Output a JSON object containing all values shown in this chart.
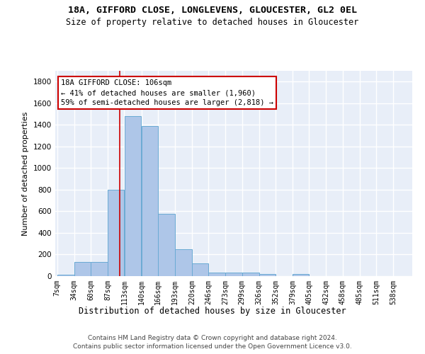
{
  "title1": "18A, GIFFORD CLOSE, LONGLEVENS, GLOUCESTER, GL2 0EL",
  "title2": "Size of property relative to detached houses in Gloucester",
  "xlabel": "Distribution of detached houses by size in Gloucester",
  "ylabel": "Number of detached properties",
  "footer1": "Contains HM Land Registry data © Crown copyright and database right 2024.",
  "footer2": "Contains public sector information licensed under the Open Government Licence v3.0.",
  "bar_labels": [
    "7sqm",
    "34sqm",
    "60sqm",
    "87sqm",
    "113sqm",
    "140sqm",
    "166sqm",
    "193sqm",
    "220sqm",
    "246sqm",
    "273sqm",
    "299sqm",
    "326sqm",
    "352sqm",
    "379sqm",
    "405sqm",
    "432sqm",
    "458sqm",
    "485sqm",
    "511sqm",
    "538sqm"
  ],
  "bar_values": [
    15,
    130,
    130,
    800,
    1480,
    1390,
    575,
    250,
    115,
    35,
    30,
    30,
    20,
    0,
    20,
    0,
    0,
    0,
    0,
    0,
    0
  ],
  "bar_color": "#aec6e8",
  "bar_edge_color": "#6aaad4",
  "background_color": "#e8eef8",
  "grid_color": "#ffffff",
  "annotation_text": "18A GIFFORD CLOSE: 106sqm\n← 41% of detached houses are smaller (1,960)\n59% of semi-detached houses are larger (2,818) →",
  "annotation_box_color": "#ffffff",
  "annotation_box_edge": "#cc0000",
  "vline_x": 106,
  "vline_color": "#cc0000",
  "ylim": [
    0,
    1900
  ],
  "bin_edges": [
    7,
    34,
    60,
    87,
    113,
    140,
    166,
    193,
    220,
    246,
    273,
    299,
    326,
    352,
    379,
    405,
    432,
    458,
    485,
    511,
    538,
    565
  ]
}
